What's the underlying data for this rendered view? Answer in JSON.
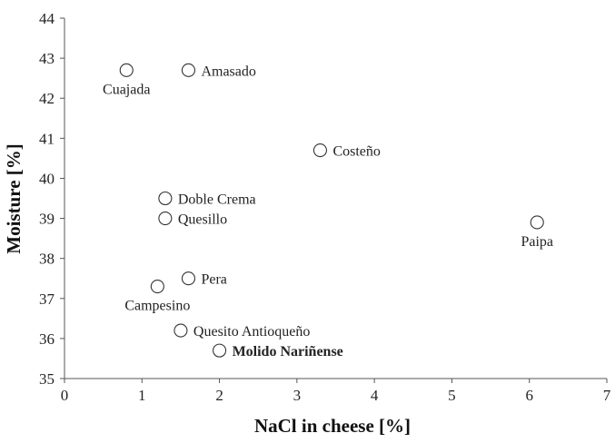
{
  "chart_data": {
    "type": "scatter",
    "xlabel": "NaCl in cheese [%]",
    "ylabel": "Moisture [%]",
    "xlim": [
      0,
      7
    ],
    "ylim": [
      35,
      44
    ],
    "x_ticks": [
      "0",
      "1",
      "2",
      "3",
      "4",
      "5",
      "6",
      "7"
    ],
    "y_ticks": [
      "35",
      "36",
      "37",
      "38",
      "39",
      "40",
      "41",
      "42",
      "43",
      "44"
    ],
    "grid": false,
    "marker": "open-circle",
    "points": [
      {
        "label": "Cuajada",
        "x": 0.8,
        "y": 42.7,
        "label_pos": "below"
      },
      {
        "label": "Amasado",
        "x": 1.6,
        "y": 42.7,
        "label_pos": "right"
      },
      {
        "label": "Costeño",
        "x": 3.3,
        "y": 40.7,
        "label_pos": "right"
      },
      {
        "label": "Doble Crema",
        "x": 1.3,
        "y": 39.5,
        "label_pos": "right"
      },
      {
        "label": "Quesillo",
        "x": 1.3,
        "y": 39.0,
        "label_pos": "right"
      },
      {
        "label": "Paipa",
        "x": 6.1,
        "y": 38.9,
        "label_pos": "below"
      },
      {
        "label": "Pera",
        "x": 1.6,
        "y": 37.5,
        "label_pos": "right"
      },
      {
        "label": "Campesino",
        "x": 1.2,
        "y": 37.3,
        "label_pos": "below"
      },
      {
        "label": "Quesito Antioqueño",
        "x": 1.5,
        "y": 36.2,
        "label_pos": "right"
      },
      {
        "label": "Molido Nariñense",
        "x": 2.0,
        "y": 35.7,
        "label_pos": "right",
        "bold": true
      }
    ]
  }
}
